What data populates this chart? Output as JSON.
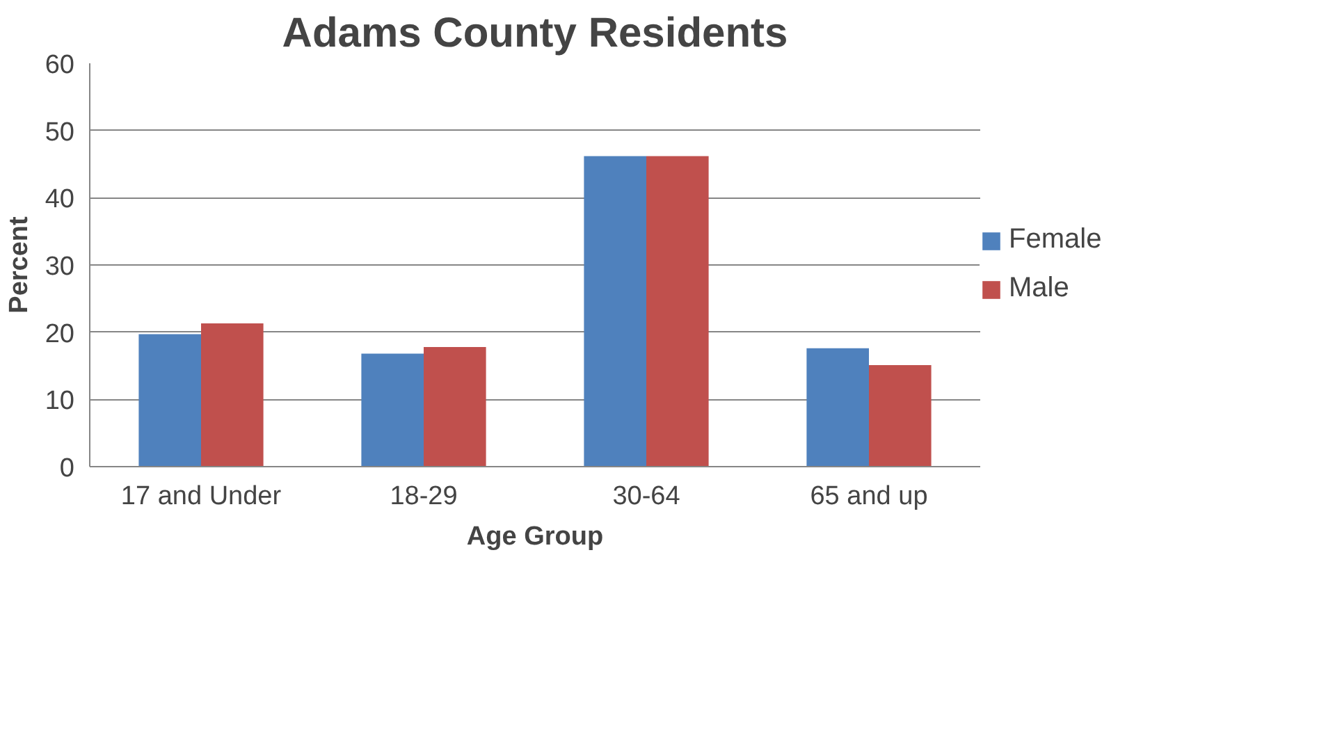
{
  "chart_data": {
    "type": "bar",
    "title": "Adams County Residents",
    "xlabel": "Age Group",
    "ylabel": "Percent",
    "categories": [
      "17 and Under",
      "18-29",
      "30-64",
      "65 and up"
    ],
    "series": [
      {
        "name": "Female",
        "color": "#4f81bd",
        "values": [
          19.7,
          16.8,
          46.2,
          17.6
        ]
      },
      {
        "name": "Male",
        "color": "#c0504d",
        "values": [
          21.3,
          17.8,
          46.2,
          15.1
        ]
      }
    ],
    "ylim": [
      0,
      60
    ],
    "yticks": [
      0,
      10,
      20,
      30,
      40,
      50,
      60
    ],
    "grid": "y",
    "legend": "right"
  }
}
